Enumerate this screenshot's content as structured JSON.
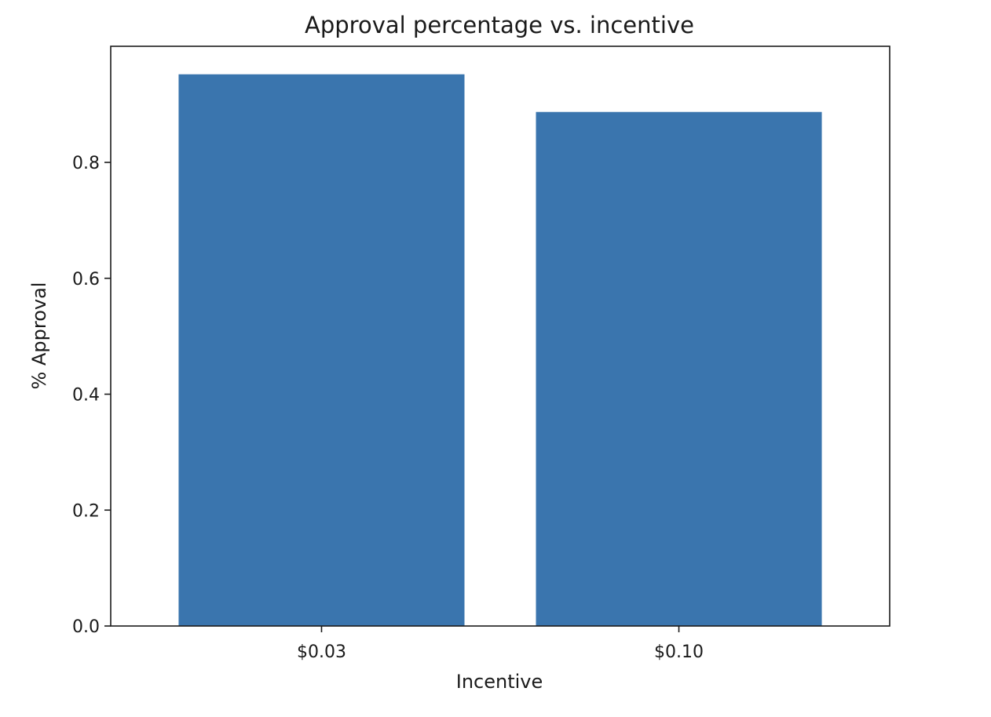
{
  "chart_data": {
    "type": "bar",
    "title": "Approval percentage vs. incentive",
    "xlabel": "Incentive",
    "ylabel": "% Approval",
    "categories": [
      "$0.03",
      "$0.10"
    ],
    "values": [
      0.952,
      0.887
    ],
    "ylim": [
      0,
      1.0
    ],
    "yticks": [
      "0.0",
      "0.2",
      "0.4",
      "0.6",
      "0.8"
    ],
    "ytick_values": [
      0,
      0.2,
      0.4,
      0.6,
      0.8
    ],
    "bar_color": "#3a75ae",
    "grid": false,
    "legend": "none"
  }
}
